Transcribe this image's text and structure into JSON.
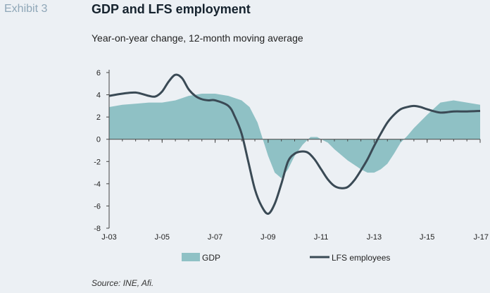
{
  "exhibit_label": "Exhibit 3",
  "title": "GDP and LFS employment",
  "subtitle": "Year-on-year change, 12-month moving average",
  "source": "Source: INE, Afi.",
  "colors": {
    "gdp_fill": "#8fc1c5",
    "lfs_line": "#3a4a55",
    "axis": "#444444"
  },
  "chart_data": {
    "type": "area",
    "x_ticks": [
      "J-03",
      "J-05",
      "J-07",
      "J-09",
      "J-11",
      "J-13",
      "J-15",
      "J-17"
    ],
    "y_ticks": [
      6,
      4,
      2,
      0,
      -2,
      -4,
      -6,
      -8
    ],
    "ylim": [
      -8,
      6
    ],
    "xlim": [
      2003.0,
      2017.0
    ],
    "grid": false,
    "legend_position": "bottom",
    "series": [
      {
        "name": "GDP",
        "type": "area",
        "x": [
          2003.0,
          2003.5,
          2004.0,
          2004.5,
          2005.0,
          2005.5,
          2006.0,
          2006.5,
          2007.0,
          2007.5,
          2008.0,
          2008.3,
          2008.6,
          2009.0,
          2009.25,
          2009.5,
          2009.75,
          2010.0,
          2010.3,
          2010.6,
          2010.85,
          2011.0,
          2011.25,
          2011.5,
          2012.0,
          2012.5,
          2012.75,
          2013.0,
          2013.25,
          2013.5,
          2013.75,
          2014.0,
          2014.25,
          2014.5,
          2015.0,
          2015.5,
          2016.0,
          2016.5,
          2017.0
        ],
        "values": [
          2.9,
          3.1,
          3.2,
          3.3,
          3.3,
          3.5,
          3.9,
          4.1,
          4.1,
          3.9,
          3.5,
          2.9,
          1.5,
          -1.5,
          -3.0,
          -3.5,
          -2.7,
          -1.5,
          -0.5,
          0.2,
          0.2,
          0.0,
          -0.3,
          -0.9,
          -1.9,
          -2.7,
          -3.0,
          -3.0,
          -2.7,
          -2.2,
          -1.3,
          -0.3,
          0.3,
          1.0,
          2.2,
          3.3,
          3.5,
          3.3,
          3.1
        ]
      },
      {
        "name": "LFS employees",
        "type": "line",
        "x": [
          2003.0,
          2003.5,
          2004.0,
          2004.5,
          2004.75,
          2005.0,
          2005.25,
          2005.5,
          2005.75,
          2006.0,
          2006.25,
          2006.5,
          2006.75,
          2007.0,
          2007.5,
          2007.75,
          2008.0,
          2008.25,
          2008.5,
          2008.75,
          2009.0,
          2009.25,
          2009.5,
          2009.75,
          2010.0,
          2010.25,
          2010.5,
          2010.75,
          2011.0,
          2011.25,
          2011.5,
          2011.75,
          2012.0,
          2012.25,
          2012.5,
          2012.75,
          2013.0,
          2013.25,
          2013.5,
          2013.75,
          2014.0,
          2014.25,
          2014.5,
          2014.75,
          2015.0,
          2015.5,
          2016.0,
          2016.5,
          2017.0
        ],
        "values": [
          3.9,
          4.1,
          4.2,
          3.9,
          3.85,
          4.3,
          5.2,
          5.8,
          5.5,
          4.5,
          3.9,
          3.6,
          3.5,
          3.5,
          3.0,
          2.0,
          0.5,
          -2.0,
          -4.5,
          -6.0,
          -6.7,
          -5.8,
          -4.0,
          -2.0,
          -1.3,
          -1.1,
          -1.2,
          -1.8,
          -2.7,
          -3.6,
          -4.2,
          -4.4,
          -4.3,
          -3.7,
          -2.8,
          -1.8,
          -0.6,
          0.5,
          1.5,
          2.2,
          2.7,
          2.9,
          3.0,
          2.9,
          2.7,
          2.4,
          2.5,
          2.5,
          2.55
        ]
      }
    ]
  }
}
